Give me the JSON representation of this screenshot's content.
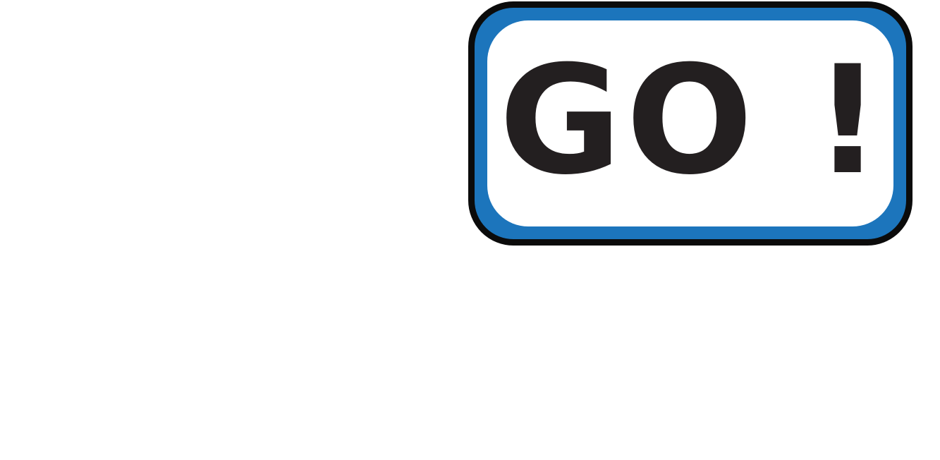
{
  "button": {
    "label": "GO !",
    "colors": {
      "outline": "#0b0b0b",
      "frame": "#1c75bc",
      "face": "#ffffff",
      "text": "#231f20"
    }
  }
}
